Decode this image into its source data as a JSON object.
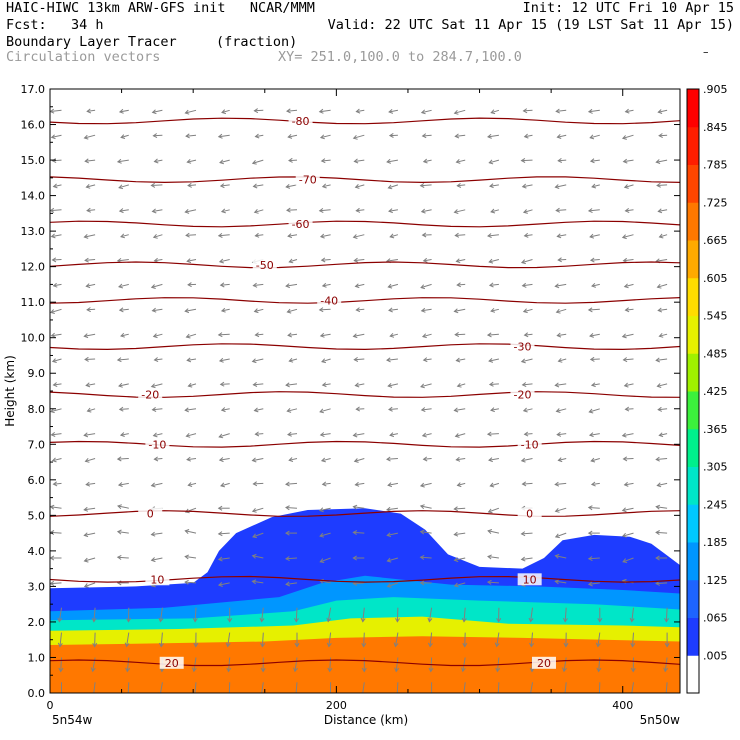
{
  "header": {
    "line1_left": "HAIC-HIWC 13km ARW-GFS init   NCAR/MMM",
    "line1_right": "Init: 12 UTC Fri 10 Apr 15",
    "fcst_label": "Fcst:   34 h",
    "valid": "Valid: 22 UTC Sat 11 Apr 15 (19 LST Sat 11 Apr 15)",
    "field_name": "Boundary Layer Tracer",
    "field_units": "(fraction)",
    "overlay_name": "Circulation vectors",
    "xy_range": "XY= 251.0,100.0 to 284.7,100.0"
  },
  "colors": {
    "contour": "#8b0000",
    "vectors": "#808080",
    "ramp": [
      "#ffffff",
      "#1e3cff",
      "#1e64ff",
      "#0096ff",
      "#00c8ff",
      "#00e6c8",
      "#00f08c",
      "#3cf03c",
      "#a0f000",
      "#e6f000",
      "#ffdc00",
      "#ffaa00",
      "#ff7800",
      "#ff4600",
      "#ff1e00",
      "#ff0000"
    ]
  },
  "chart_data": {
    "type": "heatmap",
    "xlabel": "Distance (km)",
    "ylabel": "Height (km)",
    "xlim": [
      0,
      440
    ],
    "ylim": [
      0,
      17
    ],
    "x_ticks": [
      0,
      200,
      400
    ],
    "y_ticks": [
      "0.0",
      "1.0",
      "2.0",
      "3.0",
      "4.0",
      "5.0",
      "6.0",
      "7.0",
      "8.0",
      "9.0",
      "10.0",
      "11.0",
      "12.0",
      "13.0",
      "14.0",
      "15.0",
      "16.0",
      "17.0"
    ],
    "x_endpoint_labels": {
      "left": "5n54w",
      "right": "5n50w"
    },
    "colorbar_labels": [
      ".005",
      ".065",
      ".125",
      ".185",
      ".245",
      ".305",
      ".365",
      ".425",
      ".485",
      ".545",
      ".605",
      ".665",
      ".725",
      ".785",
      ".845",
      ".905",
      "–"
    ],
    "tracer_boundaries": [
      {
        "name": "outer",
        "level": 0.005,
        "top": [
          [
            0,
            2.95
          ],
          [
            60,
            3.0
          ],
          [
            100,
            3.1
          ],
          [
            110,
            3.4
          ],
          [
            118,
            4.0
          ],
          [
            130,
            4.5
          ],
          [
            155,
            4.95
          ],
          [
            180,
            5.15
          ],
          [
            220,
            5.2
          ],
          [
            245,
            5.05
          ],
          [
            262,
            4.6
          ],
          [
            278,
            3.9
          ],
          [
            300,
            3.55
          ],
          [
            330,
            3.5
          ],
          [
            345,
            3.8
          ],
          [
            358,
            4.3
          ],
          [
            380,
            4.45
          ],
          [
            405,
            4.4
          ],
          [
            420,
            4.2
          ],
          [
            430,
            3.9
          ],
          [
            440,
            3.6
          ]
        ]
      },
      {
        "name": "low",
        "level": 0.125,
        "top": [
          [
            0,
            2.3
          ],
          [
            80,
            2.4
          ],
          [
            160,
            2.7
          ],
          [
            190,
            3.1
          ],
          [
            220,
            3.3
          ],
          [
            280,
            3.05
          ],
          [
            340,
            3.0
          ],
          [
            400,
            2.9
          ],
          [
            440,
            2.8
          ]
        ]
      },
      {
        "name": "mid",
        "level": 0.245,
        "top": [
          [
            0,
            2.05
          ],
          [
            100,
            2.1
          ],
          [
            170,
            2.3
          ],
          [
            200,
            2.6
          ],
          [
            240,
            2.7
          ],
          [
            300,
            2.6
          ],
          [
            380,
            2.5
          ],
          [
            440,
            2.35
          ]
        ]
      },
      {
        "name": "high",
        "level": 0.485,
        "top": [
          [
            0,
            1.75
          ],
          [
            90,
            1.8
          ],
          [
            170,
            1.9
          ],
          [
            210,
            2.1
          ],
          [
            260,
            2.15
          ],
          [
            320,
            1.95
          ],
          [
            400,
            1.9
          ],
          [
            440,
            1.85
          ]
        ]
      },
      {
        "name": "red",
        "level": 0.665,
        "top": [
          [
            0,
            1.35
          ],
          [
            80,
            1.4
          ],
          [
            150,
            1.45
          ],
          [
            200,
            1.55
          ],
          [
            260,
            1.6
          ],
          [
            330,
            1.55
          ],
          [
            440,
            1.45
          ]
        ]
      }
    ],
    "contour_lines": [
      {
        "label": "20",
        "y": 0.85,
        "label_x": [
          85,
          345
        ]
      },
      {
        "label": "10",
        "y": 3.2,
        "label_x": [
          75,
          335
        ]
      },
      {
        "label": "0",
        "y": 5.05,
        "label_x": [
          70,
          335
        ]
      },
      {
        "label": "-10",
        "y": 7.0,
        "label_x": [
          75,
          335
        ]
      },
      {
        "label": "-20",
        "y": 8.4,
        "label_x": [
          70,
          330
        ]
      },
      {
        "label": "-30",
        "y": 9.75,
        "label_x": [
          330
        ]
      },
      {
        "label": "-40",
        "y": 11.05,
        "label_x": [
          195
        ]
      },
      {
        "label": "-50",
        "y": 12.05,
        "label_x": [
          150
        ]
      },
      {
        "label": "-60",
        "y": 13.2,
        "label_x": [
          175
        ]
      },
      {
        "label": "-70",
        "y": 14.45,
        "label_x": [
          180
        ]
      },
      {
        "label": "-80",
        "y": 16.1,
        "label_x": [
          175
        ]
      }
    ]
  }
}
